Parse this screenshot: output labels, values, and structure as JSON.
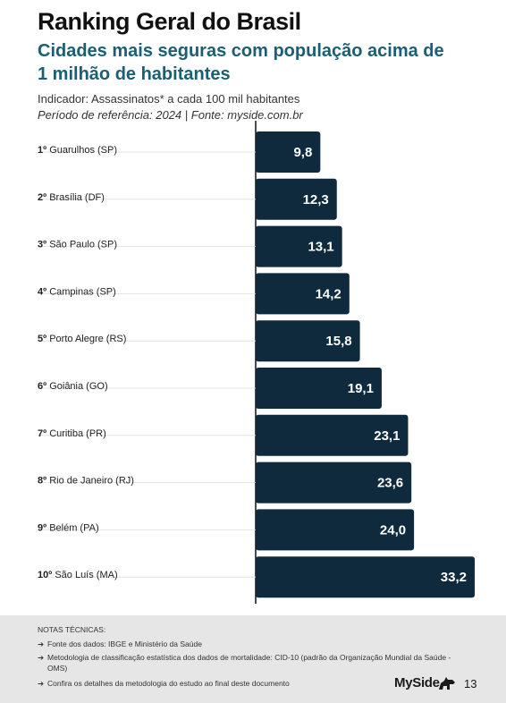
{
  "header": {
    "title": "Ranking Geral do Brasil",
    "subtitle_line1": "Cidades mais seguras com população acima de",
    "subtitle_line2": "1 milhão de habitantes",
    "indicator": "Indicador: Assassinatos* a cada 100 mil habitantes",
    "period": "Período de referência: 2024 | Fonte: myside.com.br"
  },
  "chart_data": {
    "type": "bar",
    "orientation": "horizontal",
    "ranks": [
      "1º",
      "2º",
      "3º",
      "4º",
      "5º",
      "6º",
      "7º",
      "8º",
      "9º",
      "10º"
    ],
    "categories": [
      "Guarulhos (SP)",
      "Brasília (DF)",
      "São Paulo (SP)",
      "Campinas (SP)",
      "Porto Alegre (RS)",
      "Goiânia (GO)",
      "Curitiba (PR)",
      "Rio de Janeiro (RJ)",
      "Belém (PA)",
      "São Luís (MA)"
    ],
    "values": [
      9.8,
      12.3,
      13.1,
      14.2,
      15.8,
      19.1,
      23.1,
      23.6,
      24.0,
      33.2
    ],
    "value_labels": [
      "9,8",
      "12,3",
      "13,1",
      "14,2",
      "15,8",
      "19,1",
      "23,1",
      "23,6",
      "24,0",
      "33,2"
    ],
    "xlim": [
      0,
      33.2
    ],
    "bar_color": "#0f2a3d",
    "grid": false
  },
  "notes": {
    "title": "NOTAS TÉCNICAS:",
    "arrow": "➔",
    "items": [
      "Fonte dos dados: IBGE e Ministério da Saúde",
      "Metodologia de classificação estatística dos dados de mortalidade: CID-10 (padrão da Organização Mundial da Saúde - OMS)",
      "Confira os detalhes da metodologia do estudo ao final deste documento"
    ]
  },
  "footer": {
    "brand": "MySide",
    "brand_icon": "dog-icon",
    "page_number": "13"
  },
  "colors": {
    "subtitle": "#1a5f73",
    "bar": "#0f2a3d",
    "notes_bg": "#e6e6e6"
  }
}
